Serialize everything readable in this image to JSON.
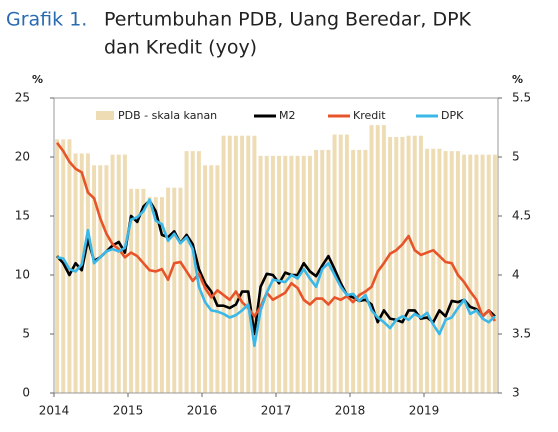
{
  "chart_data": {
    "type": "bar-line",
    "title_number": "Grafik 1.",
    "title": "Pertumbuhan PDB, Uang Beredar, DPK",
    "title_line2": "dan Kredit (yoy)",
    "y_label": "%",
    "y2_label": "%",
    "xlim": [
      2014,
      2020
    ],
    "xticks": [
      2014,
      2015,
      2016,
      2017,
      2018,
      2019
    ],
    "ylim": [
      0,
      25
    ],
    "yticks": [
      0,
      5,
      10,
      15,
      20,
      25
    ],
    "y2lim": [
      3,
      5.5
    ],
    "y2ticks": [
      3,
      {
        "value": 3.5,
        "label": "3.5"
      },
      4,
      {
        "value": 4.5,
        "label": "4.5"
      },
      5,
      {
        "value": 5.5,
        "label": "5.5"
      }
    ],
    "bar_series": {
      "name": "PDB - skala kanan",
      "color": "#eedcb4",
      "axis": "y2",
      "values": [
        5.15,
        5.03,
        4.93,
        5.02,
        4.73,
        4.66,
        4.74,
        5.05,
        4.93,
        5.18,
        5.18,
        5.01,
        5.01,
        5.01,
        5.06,
        5.19,
        5.06,
        5.27,
        5.17,
        5.18,
        5.07,
        5.05,
        5.02,
        5.02
      ]
    },
    "series": [
      {
        "name": "M2",
        "color": "#000000",
        "values": [
          11.6,
          11.0,
          10.0,
          11.0,
          10.4,
          13.0,
          11.2,
          11.5,
          12.0,
          12.5,
          12.8,
          11.9,
          15.0,
          14.5,
          15.8,
          16.3,
          15.4,
          13.4,
          13.2,
          13.7,
          12.7,
          13.4,
          12.6,
          10.5,
          9.3,
          8.6,
          7.4,
          7.4,
          7.2,
          7.5,
          8.6,
          8.6,
          5.0,
          9.0,
          10.1,
          10.0,
          9.3,
          10.2,
          10.0,
          10.0,
          11.0,
          10.3,
          9.9,
          10.8,
          11.6,
          10.5,
          9.3,
          8.3,
          8.1,
          7.8,
          7.9,
          7.5,
          6.0,
          7.0,
          6.3,
          6.2,
          6.0,
          7.0,
          7.0,
          6.3,
          6.4,
          6.0,
          7.0,
          6.5,
          7.8,
          7.7,
          7.9,
          7.3,
          7.1,
          6.5,
          7.0,
          6.5
        ]
      },
      {
        "name": "Kredit",
        "color": "#e8542a",
        "values": [
          21.2,
          20.5,
          19.6,
          19.0,
          18.7,
          17.0,
          16.5,
          14.8,
          13.5,
          12.6,
          12.2,
          11.5,
          11.9,
          11.6,
          11.0,
          10.4,
          10.3,
          10.5,
          9.6,
          11.0,
          11.1,
          10.3,
          9.5,
          10.1,
          8.9,
          8.1,
          8.7,
          8.3,
          7.9,
          8.6,
          7.7,
          7.2,
          6.5,
          7.3,
          8.5,
          7.9,
          8.2,
          8.5,
          9.3,
          8.9,
          7.9,
          7.5,
          8.0,
          8.0,
          7.5,
          8.1,
          7.9,
          8.2,
          7.7,
          8.3,
          8.6,
          9.0,
          10.3,
          11.0,
          11.8,
          12.1,
          12.6,
          13.3,
          12.1,
          11.7,
          11.9,
          12.1,
          11.6,
          11.1,
          11.0,
          10.0,
          9.4,
          8.6,
          7.9,
          6.5,
          7.0,
          6.1
        ]
      },
      {
        "name": "DPK",
        "color": "#3bb8e8",
        "values": [
          11.5,
          11.4,
          10.5,
          10.3,
          10.9,
          13.8,
          11.0,
          11.5,
          12.0,
          12.2,
          12.0,
          12.3,
          14.7,
          14.9,
          15.4,
          16.4,
          14.6,
          14.3,
          12.9,
          13.5,
          12.7,
          13.2,
          12.2,
          9.0,
          7.7,
          7.0,
          6.9,
          6.7,
          6.4,
          6.6,
          7.0,
          7.5,
          4.0,
          7.0,
          8.5,
          9.6,
          9.5,
          9.4,
          10.0,
          9.7,
          10.5,
          9.7,
          9.0,
          10.5,
          11.0,
          10.0,
          9.0,
          8.3,
          8.4,
          7.8,
          8.3,
          7.0,
          6.4,
          6.0,
          5.5,
          6.2,
          6.5,
          6.2,
          6.7,
          6.4,
          6.8,
          5.8,
          5.0,
          6.2,
          6.4,
          7.2,
          7.9,
          6.7,
          7.0,
          6.3,
          6.0,
          6.5
        ]
      }
    ]
  }
}
